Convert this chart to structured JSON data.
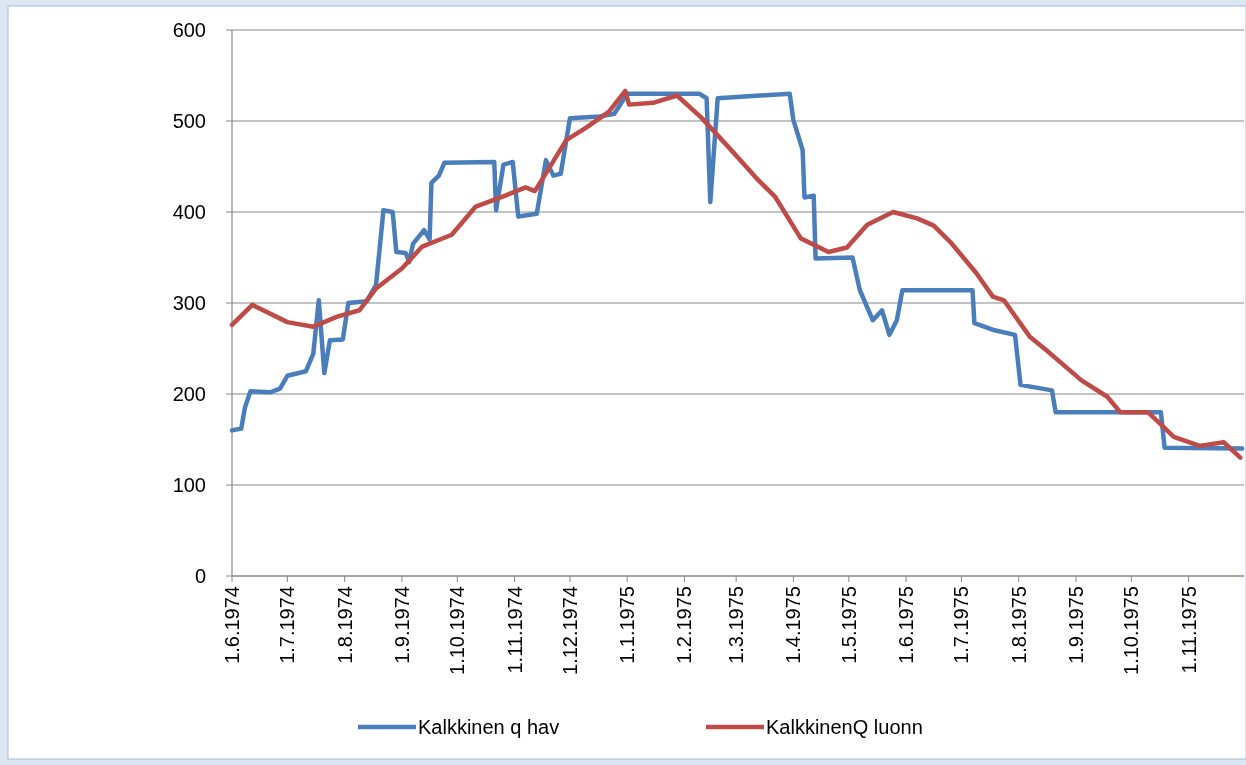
{
  "chart_data": {
    "type": "line",
    "xlim": [
      "1974-06-01",
      "1975-12-01"
    ],
    "ylim": [
      0,
      600
    ],
    "yticks": [
      0,
      100,
      200,
      300,
      400,
      500,
      600
    ],
    "xticks": [
      {
        "value": "1974-06-01",
        "label": "1.6.1974"
      },
      {
        "value": "1974-07-01",
        "label": "1.7.1974"
      },
      {
        "value": "1974-08-01",
        "label": "1.8.1974"
      },
      {
        "value": "1974-09-01",
        "label": "1.9.1974"
      },
      {
        "value": "1974-10-01",
        "label": "1.10.1974"
      },
      {
        "value": "1974-11-01",
        "label": "1.11.1974"
      },
      {
        "value": "1974-12-01",
        "label": "1.12.1974"
      },
      {
        "value": "1975-01-01",
        "label": "1.1.1975"
      },
      {
        "value": "1975-02-01",
        "label": "1.2.1975"
      },
      {
        "value": "1975-03-01",
        "label": "1.3.1975"
      },
      {
        "value": "1975-04-01",
        "label": "1.4.1975"
      },
      {
        "value": "1975-05-01",
        "label": "1.5.1975"
      },
      {
        "value": "1975-06-01",
        "label": "1.6.1975"
      },
      {
        "value": "1975-07-01",
        "label": "1.7.1975"
      },
      {
        "value": "1975-08-01",
        "label": "1.8.1975"
      },
      {
        "value": "1975-09-01",
        "label": "1.9.1975"
      },
      {
        "value": "1975-10-01",
        "label": "1.10.1975"
      },
      {
        "value": "1975-11-01",
        "label": "1.11.1975"
      }
    ],
    "grid": "y",
    "legend": "bottom",
    "marker": "none",
    "line_style": "solid",
    "series": [
      {
        "name": "Kalkkinen q hav",
        "color": "#4a7ebb",
        "x": [
          "1974-06-01",
          "1974-06-06",
          "1974-06-08",
          "1974-06-11",
          "1974-06-22",
          "1974-06-27",
          "1974-07-01",
          "1974-07-11",
          "1974-07-15",
          "1974-07-18",
          "1974-07-21",
          "1974-07-24",
          "1974-07-31",
          "1974-08-03",
          "1974-08-13",
          "1974-08-18",
          "1974-08-22",
          "1974-08-27",
          "1974-08-29",
          "1974-09-03",
          "1974-09-05",
          "1974-09-07",
          "1974-09-13",
          "1974-09-16",
          "1974-09-17",
          "1974-09-21",
          "1974-09-24",
          "1974-10-21",
          "1974-10-22",
          "1974-10-26",
          "1974-10-31",
          "1974-11-03",
          "1974-11-13",
          "1974-11-18",
          "1974-11-22",
          "1974-11-26",
          "1974-12-01",
          "1974-12-17",
          "1974-12-25",
          "1975-01-01",
          "1975-02-09",
          "1975-02-13",
          "1975-02-15",
          "1975-02-19",
          "1975-03-30",
          "1975-04-01",
          "1975-04-06",
          "1975-04-07",
          "1975-04-12",
          "1975-04-13",
          "1975-05-03",
          "1975-05-07",
          "1975-05-14",
          "1975-05-19",
          "1975-05-23",
          "1975-05-27",
          "1975-05-30",
          "1975-07-07",
          "1975-07-08",
          "1975-07-19",
          "1975-07-30",
          "1975-08-02",
          "1975-08-19",
          "1975-08-21",
          "1975-10-17",
          "1975-10-19",
          "1975-11-30"
        ],
        "values": [
          160,
          162,
          185,
          203,
          202,
          206,
          220,
          225,
          244,
          303,
          223,
          259,
          260,
          300,
          302,
          320,
          402,
          400,
          356,
          355,
          345,
          365,
          380,
          370,
          432,
          440,
          454,
          455,
          402,
          452,
          455,
          395,
          398,
          457,
          440,
          442,
          503,
          505,
          508,
          530,
          530,
          525,
          411,
          525,
          530,
          501,
          468,
          416,
          418,
          349,
          350,
          314,
          281,
          292,
          265,
          281,
          314,
          314,
          278,
          270,
          265,
          210,
          204,
          180,
          180,
          141,
          140
        ]
      },
      {
        "name": "KalkkinenQ  luonn",
        "color": "#be4b48",
        "x": [
          "1974-06-01",
          "1974-06-12",
          "1974-07-01",
          "1974-07-15",
          "1974-07-28",
          "1974-08-09",
          "1974-08-18",
          "1974-09-01",
          "1974-09-12",
          "1974-09-28",
          "1974-10-11",
          "1974-10-27",
          "1974-11-07",
          "1974-11-12",
          "1974-11-20",
          "1974-11-29",
          "1974-12-10",
          "1974-12-22",
          "1974-12-31",
          "1975-01-02",
          "1975-01-15",
          "1975-01-28",
          "1975-02-10",
          "1975-02-25",
          "1975-03-13",
          "1975-03-22",
          "1975-04-05",
          "1975-04-20",
          "1975-04-30",
          "1975-05-11",
          "1975-05-25",
          "1975-06-07",
          "1975-06-16",
          "1975-06-25",
          "1975-07-09",
          "1975-07-18",
          "1975-07-24",
          "1975-08-07",
          "1975-08-16",
          "1975-09-04",
          "1975-09-18",
          "1975-09-25",
          "1975-10-10",
          "1975-10-24",
          "1975-11-07",
          "1975-11-20",
          "1975-11-29"
        ],
        "values": [
          276,
          298,
          279,
          274,
          285,
          292,
          316,
          338,
          362,
          375,
          406,
          418,
          427,
          423,
          449,
          479,
          493,
          510,
          533,
          518,
          520,
          528,
          504,
          471,
          435,
          417,
          371,
          356,
          361,
          386,
          400,
          393,
          385,
          367,
          333,
          307,
          303,
          263,
          248,
          215,
          197,
          180,
          180,
          153,
          143,
          147,
          130
        ]
      }
    ]
  }
}
